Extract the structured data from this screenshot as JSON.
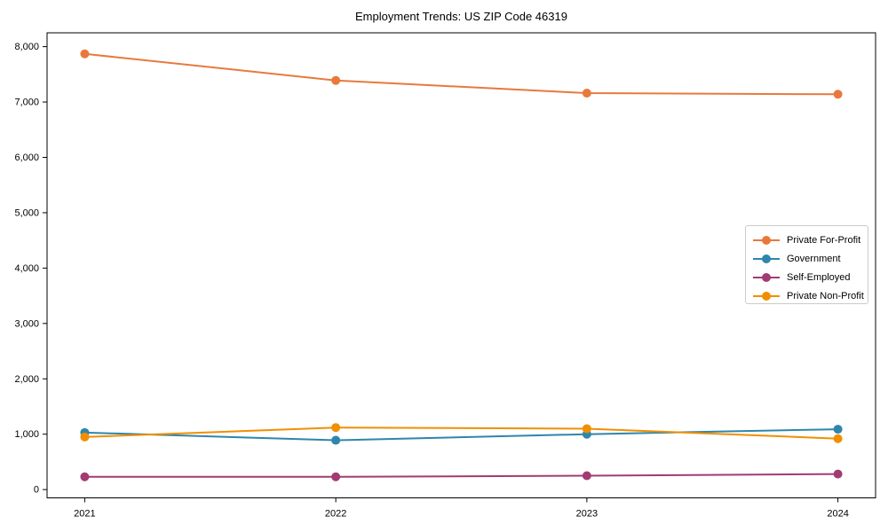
{
  "chart_data": {
    "type": "line",
    "title": "Employment Trends: US ZIP Code 46319",
    "categories": [
      "2021",
      "2022",
      "2023",
      "2024"
    ],
    "series": [
      {
        "name": "Private For-Profit",
        "color": "#E8793C",
        "values": [
          7870,
          7390,
          7160,
          7140
        ]
      },
      {
        "name": "Government",
        "color": "#2E86AB",
        "values": [
          1030,
          890,
          1000,
          1090
        ]
      },
      {
        "name": "Self-Employed",
        "color": "#A23B72",
        "values": [
          230,
          230,
          250,
          280
        ]
      },
      {
        "name": "Private Non-Profit",
        "color": "#F18F01",
        "values": [
          950,
          1120,
          1100,
          920
        ]
      }
    ],
    "ylim": [
      -150,
      8250
    ],
    "yticks": [
      0,
      1000,
      2000,
      3000,
      4000,
      5000,
      6000,
      7000,
      8000
    ],
    "ytick_labels": [
      "0",
      "1,000",
      "2,000",
      "3,000",
      "4,000",
      "5,000",
      "6,000",
      "7,000",
      "8,000"
    ],
    "xlabel": "",
    "ylabel": "",
    "grid": false,
    "legend_position": "center-right",
    "marker": "circle",
    "axis_color": "#000000",
    "text_color": "#000000",
    "legend_border_color": "#cccccc",
    "background_color": "#ffffff"
  }
}
